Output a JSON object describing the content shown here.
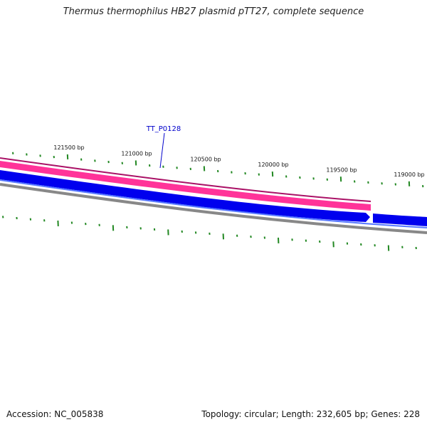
{
  "header": {
    "title": "Thermus thermophilus HB27 plasmid pTT27, complete sequence"
  },
  "footer": {
    "accession": "Accession: NC_005838",
    "summary": "Topology: circular; Length: 232,605 bp; Genes: 228"
  },
  "map": {
    "ticks": [
      {
        "label": "121500 bp"
      },
      {
        "label": "121000 bp"
      },
      {
        "label": "120500 bp"
      },
      {
        "label": "120000 bp"
      },
      {
        "label": "119500 bp"
      },
      {
        "label": "119000 bp"
      }
    ],
    "gene": {
      "label": "TT_P0128"
    },
    "colors": {
      "pink_strand": "#ff3399",
      "pink_dark": "#aa1166",
      "blue_strand": "#0000ee",
      "blue_light": "#5577ff",
      "backbone": "#888888",
      "ticks": "#228822"
    }
  }
}
